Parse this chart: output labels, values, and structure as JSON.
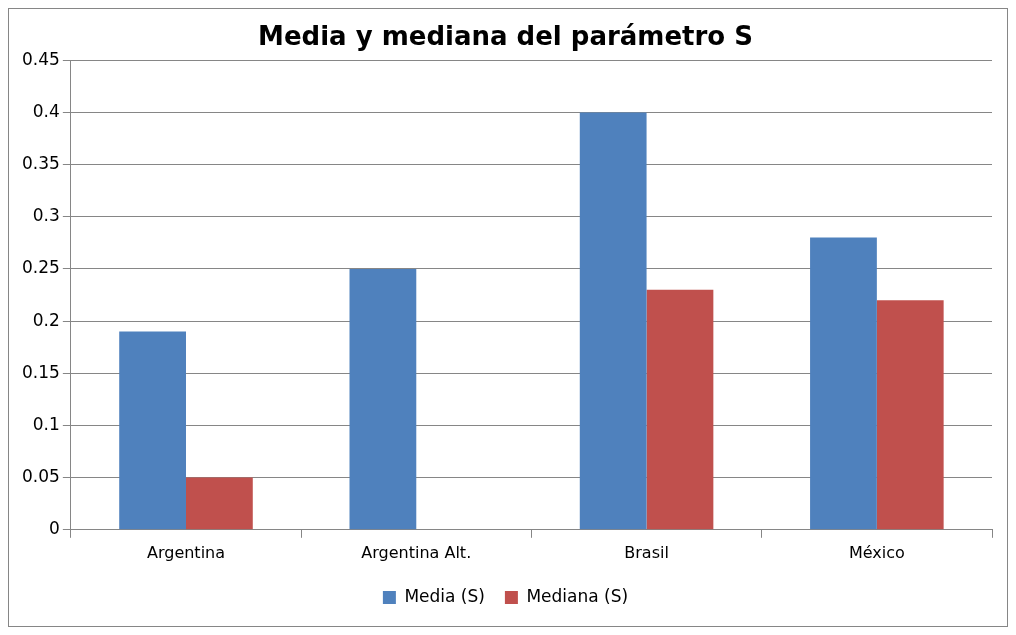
{
  "chart_data": {
    "type": "bar",
    "title": "Media y mediana del parámetro S",
    "categories": [
      "Argentina",
      "Argentina Alt.",
      "Brasil",
      "México"
    ],
    "series": [
      {
        "name": "Media (S)",
        "color": "#4f81bd",
        "values": [
          0.19,
          0.25,
          0.4,
          0.28
        ]
      },
      {
        "name": "Mediana (S)",
        "color": "#c0504d",
        "values": [
          0.05,
          null,
          0.23,
          0.22
        ]
      }
    ],
    "ylim": [
      0,
      0.45
    ],
    "yticks": [
      0,
      0.05,
      0.1,
      0.15,
      0.2,
      0.25,
      0.3,
      0.35,
      0.4,
      0.45
    ],
    "grid": "y",
    "legend": "bottom"
  }
}
